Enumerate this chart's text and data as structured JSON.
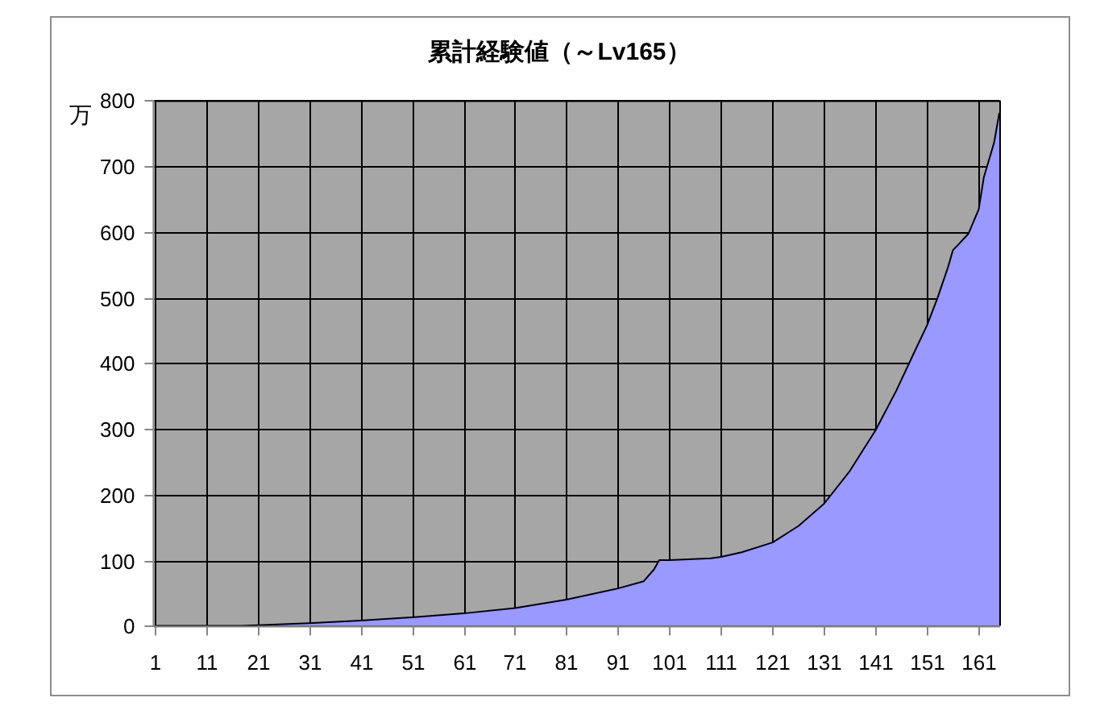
{
  "chart_data": {
    "type": "area",
    "title": "累計経験値（～Lv165）",
    "ylabel": "万",
    "x": [
      1,
      11,
      18,
      21,
      31,
      41,
      51,
      61,
      71,
      81,
      91,
      96,
      98,
      99,
      101,
      109,
      111,
      115,
      121,
      126,
      131,
      136,
      141,
      145,
      149,
      151,
      153,
      155,
      156,
      157,
      159,
      161,
      162,
      164,
      165
    ],
    "values": [
      0,
      0,
      0,
      1,
      4,
      8,
      13,
      19,
      27,
      40,
      57,
      68,
      86,
      100,
      100,
      103,
      105,
      112,
      127,
      152,
      186,
      236,
      298,
      358,
      425,
      458,
      499,
      545,
      572,
      580,
      597,
      634,
      683,
      736,
      781
    ],
    "color": "#9999ff",
    "xlim": [
      1,
      165
    ],
    "xticks": [
      1,
      11,
      21,
      31,
      41,
      51,
      61,
      71,
      81,
      91,
      101,
      111,
      121,
      131,
      141,
      151,
      161
    ],
    "ylim": [
      0,
      800
    ],
    "yticks": [
      0,
      100,
      200,
      300,
      400,
      500,
      600,
      700,
      800
    ],
    "grid": true
  }
}
